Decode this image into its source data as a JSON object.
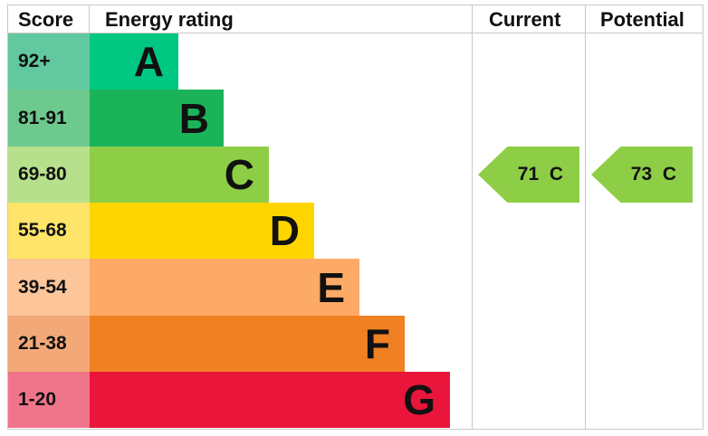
{
  "chart_data": {
    "type": "table",
    "headers": {
      "score": "Score",
      "rating": "Energy rating",
      "current": "Current",
      "potential": "Potential"
    },
    "bands": [
      {
        "letter": "A",
        "range": "92+",
        "color": "#00c781",
        "score_color": "#62c89f"
      },
      {
        "letter": "B",
        "range": "81-91",
        "color": "#1bb35a",
        "score_color": "#6ec98e"
      },
      {
        "letter": "C",
        "range": "69-80",
        "color": "#8dce46",
        "score_color": "#b7e08c"
      },
      {
        "letter": "D",
        "range": "55-68",
        "color": "#ffd500",
        "score_color": "#fee468"
      },
      {
        "letter": "E",
        "range": "39-54",
        "color": "#fcaa65",
        "score_color": "#fdc59a"
      },
      {
        "letter": "F",
        "range": "21-38",
        "color": "#ef8023",
        "score_color": "#f3a977"
      },
      {
        "letter": "G",
        "range": "1-20",
        "color": "#e9153b",
        "score_color": "#f0758b"
      }
    ],
    "current": {
      "score": 71,
      "band": "C",
      "label": "71  C",
      "color": "#8dce46"
    },
    "potential": {
      "score": 73,
      "band": "C",
      "label": "73  C",
      "color": "#8dce46"
    }
  }
}
